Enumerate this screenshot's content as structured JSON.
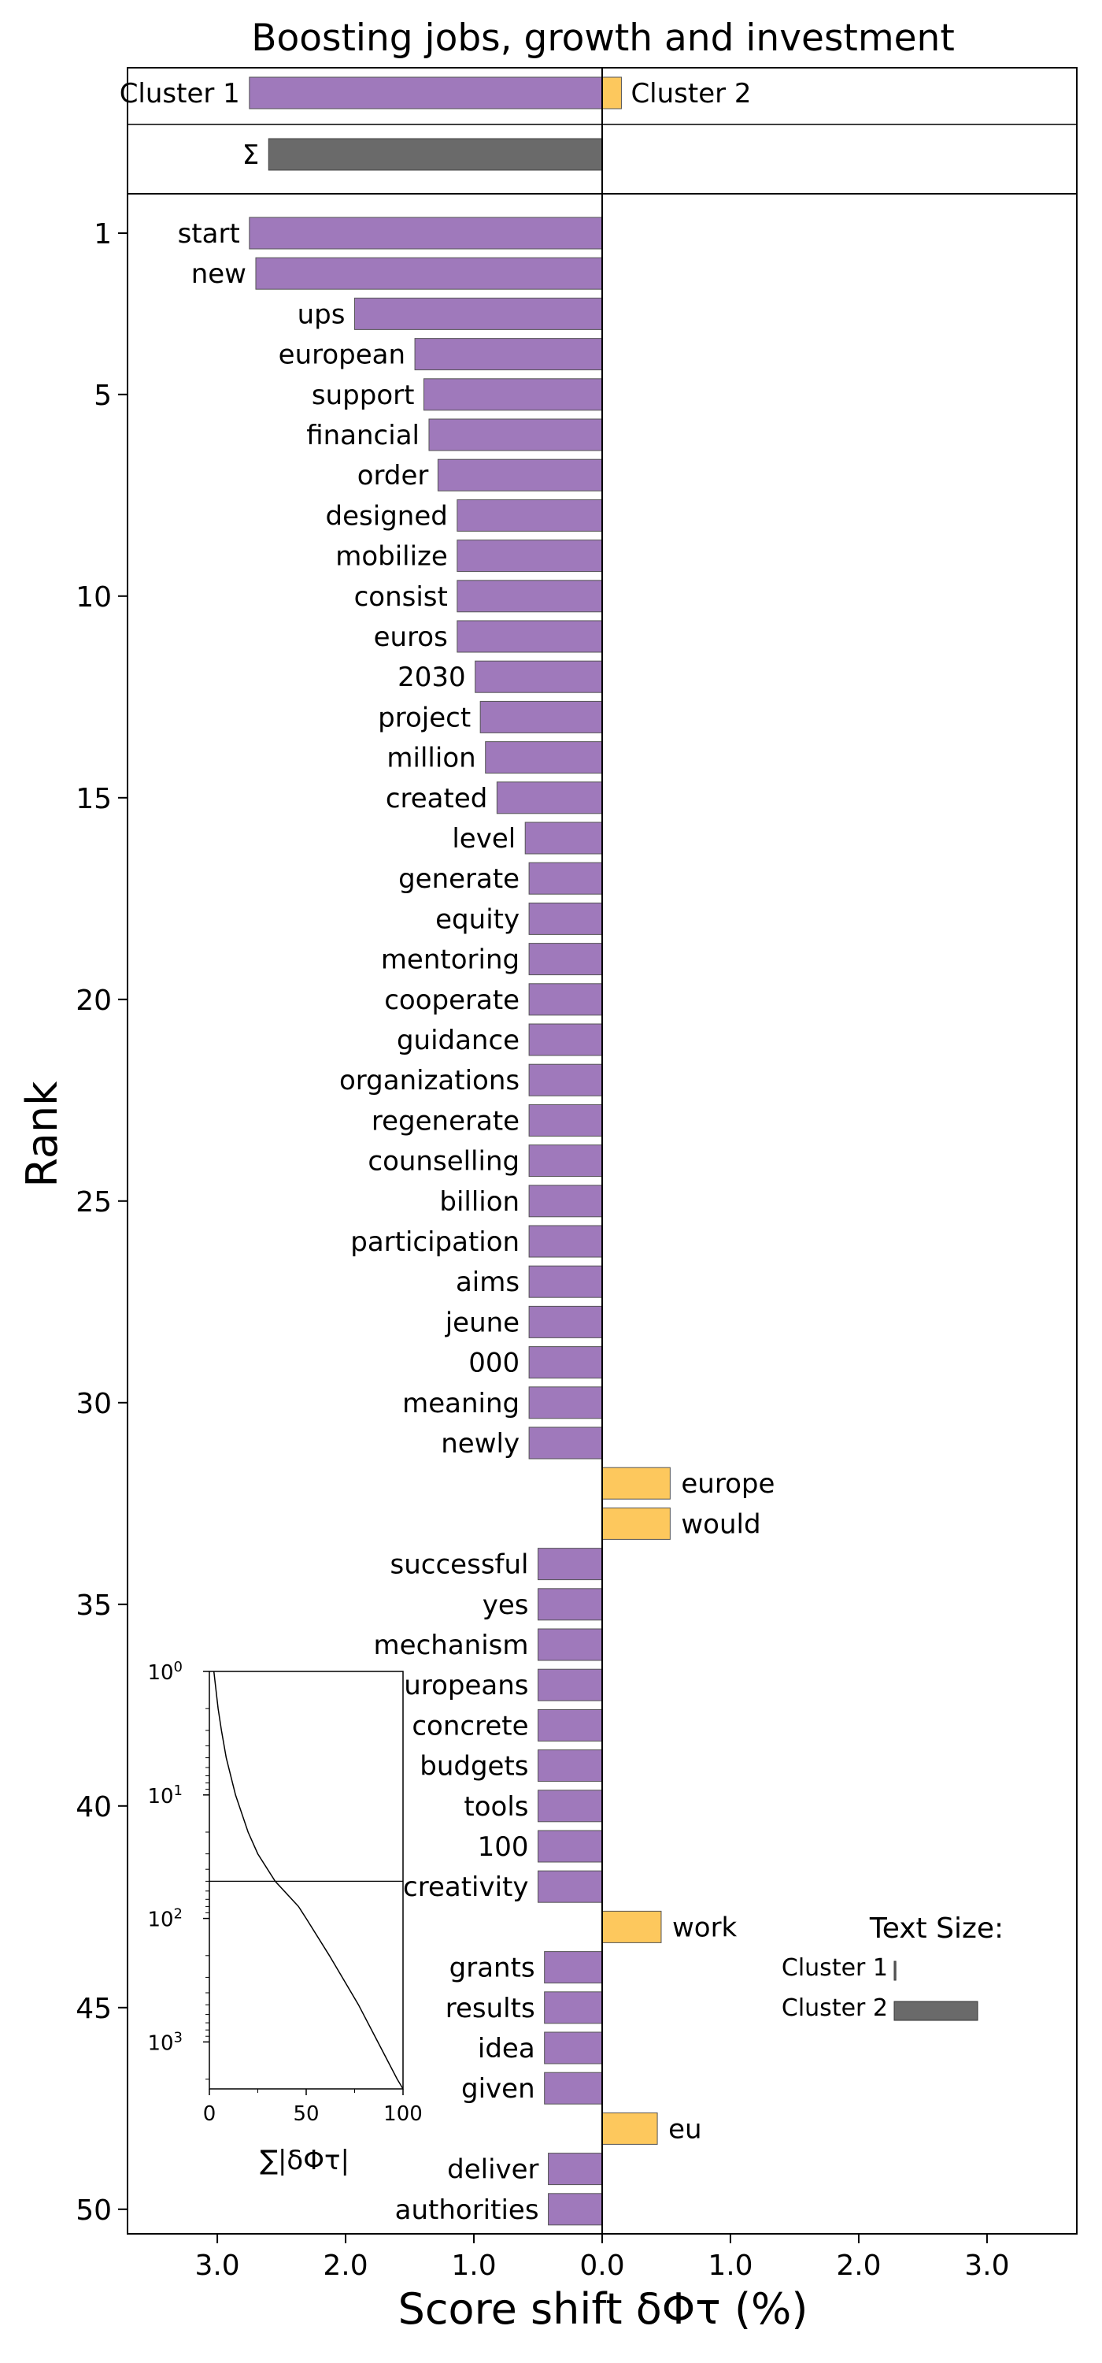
{
  "chart_data": {
    "type": "bar",
    "title": "Boosting jobs, growth and investment",
    "xlabel": "Score shift δΦτ (%)",
    "ylabel": "Rank",
    "xlim": [
      -3.7,
      3.7
    ],
    "xticks": [
      "3.0",
      "2.0",
      "1.0",
      "0.0",
      "1.0",
      "2.0",
      "3.0"
    ],
    "yticks": [
      "1",
      "5",
      "10",
      "15",
      "20",
      "25",
      "30",
      "35",
      "40",
      "45",
      "50"
    ],
    "colors": {
      "cluster_1": "#9f79bb",
      "cluster_2": "#fdc85d",
      "sum": "#6a6a6a"
    },
    "summary": {
      "cluster_1_label": "Cluster 1",
      "cluster_2_label": "Cluster 2",
      "cluster_1_value": -2.75,
      "cluster_2_value": 0.15,
      "sum_label": "Σ",
      "sum_value": -2.6
    },
    "words": [
      {
        "rank": 1,
        "word": "start",
        "value": -2.75
      },
      {
        "rank": 2,
        "word": "new",
        "value": -2.7
      },
      {
        "rank": 3,
        "word": "ups",
        "value": -1.93
      },
      {
        "rank": 4,
        "word": "european",
        "value": -1.46
      },
      {
        "rank": 5,
        "word": "support",
        "value": -1.39
      },
      {
        "rank": 6,
        "word": "financial",
        "value": -1.35
      },
      {
        "rank": 7,
        "word": "order",
        "value": -1.28
      },
      {
        "rank": 8,
        "word": "designed",
        "value": -1.13
      },
      {
        "rank": 9,
        "word": "mobilize",
        "value": -1.13
      },
      {
        "rank": 10,
        "word": "consist",
        "value": -1.13
      },
      {
        "rank": 11,
        "word": "euros",
        "value": -1.13
      },
      {
        "rank": 12,
        "word": "2030",
        "value": -0.99
      },
      {
        "rank": 13,
        "word": "project",
        "value": -0.95
      },
      {
        "rank": 14,
        "word": "million",
        "value": -0.91
      },
      {
        "rank": 15,
        "word": "created",
        "value": -0.82
      },
      {
        "rank": 16,
        "word": "level",
        "value": -0.6
      },
      {
        "rank": 17,
        "word": "generate",
        "value": -0.57
      },
      {
        "rank": 18,
        "word": "equity",
        "value": -0.57
      },
      {
        "rank": 19,
        "word": "mentoring",
        "value": -0.57
      },
      {
        "rank": 20,
        "word": "cooperate",
        "value": -0.57
      },
      {
        "rank": 21,
        "word": "guidance",
        "value": -0.57
      },
      {
        "rank": 22,
        "word": "organizations",
        "value": -0.57
      },
      {
        "rank": 23,
        "word": "regenerate",
        "value": -0.57
      },
      {
        "rank": 24,
        "word": "counselling",
        "value": -0.57
      },
      {
        "rank": 25,
        "word": "billion",
        "value": -0.57
      },
      {
        "rank": 26,
        "word": "participation",
        "value": -0.57
      },
      {
        "rank": 27,
        "word": "aims",
        "value": -0.57
      },
      {
        "rank": 28,
        "word": "jeune",
        "value": -0.57
      },
      {
        "rank": 29,
        "word": "000",
        "value": -0.57
      },
      {
        "rank": 30,
        "word": "meaning",
        "value": -0.57
      },
      {
        "rank": 31,
        "word": "newly",
        "value": -0.57
      },
      {
        "rank": 32,
        "word": "europe",
        "value": 0.53
      },
      {
        "rank": 33,
        "word": "would",
        "value": 0.53
      },
      {
        "rank": 34,
        "word": "successful",
        "value": -0.5
      },
      {
        "rank": 35,
        "word": "yes",
        "value": -0.5
      },
      {
        "rank": 36,
        "word": "mechanism",
        "value": -0.5
      },
      {
        "rank": 37,
        "word": "europeans",
        "value": -0.5
      },
      {
        "rank": 38,
        "word": "concrete",
        "value": -0.5
      },
      {
        "rank": 39,
        "word": "budgets",
        "value": -0.5
      },
      {
        "rank": 40,
        "word": "tools",
        "value": -0.5
      },
      {
        "rank": 41,
        "word": "100",
        "value": -0.5
      },
      {
        "rank": 42,
        "word": "creativity",
        "value": -0.5
      },
      {
        "rank": 43,
        "word": "work",
        "value": 0.46
      },
      {
        "rank": 44,
        "word": "grants",
        "value": -0.45
      },
      {
        "rank": 45,
        "word": "results",
        "value": -0.45
      },
      {
        "rank": 46,
        "word": "idea",
        "value": -0.45
      },
      {
        "rank": 47,
        "word": "given",
        "value": -0.45
      },
      {
        "rank": 48,
        "word": "eu",
        "value": 0.43
      },
      {
        "rank": 49,
        "word": "deliver",
        "value": -0.42
      },
      {
        "rank": 50,
        "word": "authorities",
        "value": -0.42
      }
    ],
    "inset": {
      "xlabel": "∑|δΦτ|",
      "xticks": [
        0,
        50,
        100
      ],
      "yticks": [
        {
          "base": "10",
          "exp": "0",
          "rank": 1
        },
        {
          "base": "10",
          "exp": "1",
          "rank": 10
        },
        {
          "base": "10",
          "exp": "2",
          "rank": 100
        },
        {
          "base": "10",
          "exp": "3",
          "rank": 1000
        }
      ],
      "hline_rank": 50,
      "curve": [
        {
          "rank": 1,
          "cum": 2.3
        },
        {
          "rank": 2,
          "cum": 4.5
        },
        {
          "rank": 3,
          "cum": 6.2
        },
        {
          "rank": 5,
          "cum": 8.7
        },
        {
          "rank": 10,
          "cum": 13.5
        },
        {
          "rank": 20,
          "cum": 20
        },
        {
          "rank": 30,
          "cum": 25
        },
        {
          "rank": 50,
          "cum": 34
        },
        {
          "rank": 80,
          "cum": 46
        },
        {
          "rank": 100,
          "cum": 50
        },
        {
          "rank": 200,
          "cum": 62
        },
        {
          "rank": 500,
          "cum": 77
        },
        {
          "rank": 1000,
          "cum": 87
        },
        {
          "rank": 2000,
          "cum": 97
        },
        {
          "rank": 2400,
          "cum": 100
        }
      ]
    },
    "legend": {
      "title": "Text Size:",
      "cluster_1_label": "Cluster 1",
      "cluster_2_label": "Cluster 2",
      "cluster_1_size": 0.02,
      "cluster_2_size": 1.0
    }
  }
}
